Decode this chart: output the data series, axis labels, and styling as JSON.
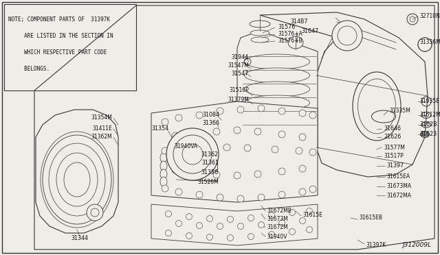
{
  "bg_color": "#f0ede8",
  "line_color": "#333333",
  "text_color": "#111111",
  "title": "J312009L",
  "note_text_lines": [
    "NOTE; COMPONENT PARTS OF  31397K",
    "     ARE LISTED IN THE SECTION IN",
    "     WHICH RESPECTIVE PART CODE",
    "     BELONGS."
  ],
  "fig_w": 6.4,
  "fig_h": 3.72,
  "dpi": 100
}
